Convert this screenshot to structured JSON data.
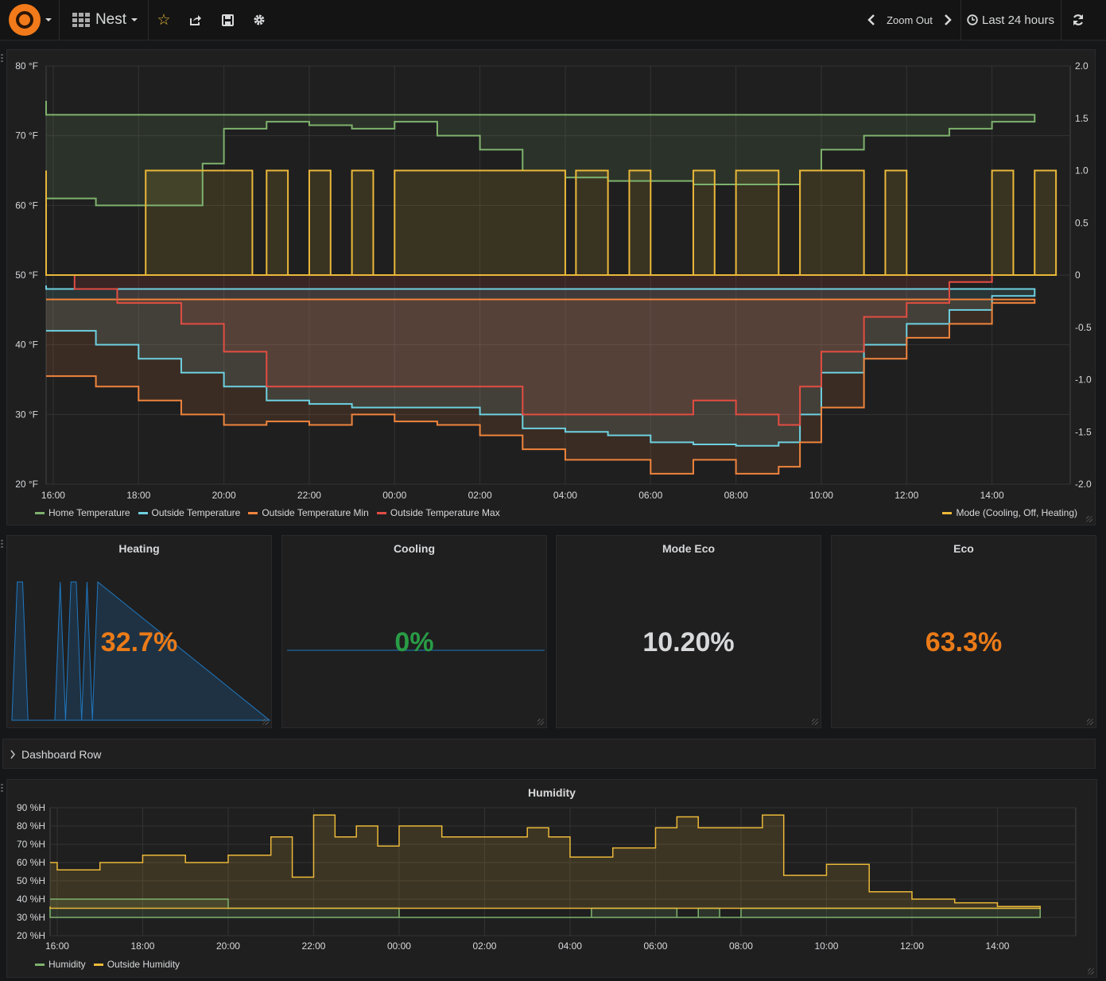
{
  "header": {
    "dashboard_name": "Nest",
    "zoom_out_label": "Zoom Out",
    "time_range": "Last 24 hours"
  },
  "colors": {
    "green": "#7eb26d",
    "blue": "#6ed0e0",
    "orange": "#ef843c",
    "red": "#e24d42",
    "yellow": "#eab839",
    "accent_orange": "#eb7b18",
    "stat_green": "#299c46",
    "spark_blue": "#1f78c1"
  },
  "main_chart": {
    "y_left_ticks": [
      "80 °F",
      "70 °F",
      "60 °F",
      "50 °F",
      "40 °F",
      "30 °F",
      "20 °F"
    ],
    "y_right_ticks": [
      "2.0",
      "1.5",
      "1.0",
      "0.5",
      "0",
      "-0.5",
      "-1.0",
      "-1.5",
      "-2.0"
    ],
    "x_ticks": [
      "16:00",
      "18:00",
      "20:00",
      "22:00",
      "00:00",
      "02:00",
      "04:00",
      "06:00",
      "08:00",
      "10:00",
      "12:00",
      "14:00"
    ],
    "legend_left": [
      {
        "name": "Home Temperature",
        "color": "#7eb26d"
      },
      {
        "name": "Outside Temperature",
        "color": "#6ed0e0"
      },
      {
        "name": "Outside Temperature Min",
        "color": "#ef843c"
      },
      {
        "name": "Outside Temperature Max",
        "color": "#e24d42"
      }
    ],
    "legend_right": {
      "name": "Mode (Cooling, Off, Heating)",
      "color": "#eab839"
    }
  },
  "chart_data": [
    {
      "type": "line",
      "x_axis": "time",
      "x_range": [
        "15:50",
        "15:50 (+24h)"
      ],
      "ylim_left": [
        20,
        80
      ],
      "ylim_right": [
        -2.0,
        2.0
      ],
      "grid": true,
      "legend_placement": "bottom",
      "series": [
        {
          "name": "Home Temperature",
          "axis": "left",
          "color": "#7eb26d",
          "x": [
            "15:50",
            "17:00",
            "18:00",
            "19:30",
            "20:00",
            "21:00",
            "22:00",
            "23:00",
            "00:00",
            "01:00",
            "02:00",
            "03:00",
            "04:00",
            "05:00",
            "06:00",
            "07:00",
            "08:00",
            "09:00",
            "09:30",
            "10:00",
            "11:00",
            "12:00",
            "13:00",
            "14:00",
            "15:00",
            "15:50"
          ],
          "values": [
            61,
            60,
            60,
            66,
            71,
            72,
            71.5,
            71,
            72,
            70,
            68,
            65,
            64,
            63.5,
            63.5,
            63,
            63,
            63,
            65,
            68,
            70,
            70,
            71,
            72,
            73,
            75
          ]
        },
        {
          "name": "Outside Temperature",
          "axis": "left",
          "color": "#6ed0e0",
          "x": [
            "15:50",
            "17:00",
            "18:00",
            "19:00",
            "20:00",
            "21:00",
            "22:00",
            "23:00",
            "00:00",
            "01:00",
            "02:00",
            "03:00",
            "04:00",
            "05:00",
            "06:00",
            "07:00",
            "08:00",
            "09:00",
            "09:30",
            "10:00",
            "11:00",
            "12:00",
            "13:00",
            "14:00",
            "15:00",
            "15:50"
          ],
          "values": [
            42,
            40,
            38,
            36,
            34,
            32,
            31.5,
            31,
            31,
            31,
            30,
            28,
            27.5,
            27,
            26,
            25.7,
            25.5,
            26,
            30,
            36,
            40,
            43,
            45,
            47,
            48,
            48.5
          ]
        },
        {
          "name": "Outside Temperature Min",
          "axis": "left",
          "color": "#ef843c",
          "x": [
            "15:50",
            "17:00",
            "18:00",
            "19:00",
            "20:00",
            "21:00",
            "22:00",
            "23:00",
            "00:00",
            "01:00",
            "02:00",
            "03:00",
            "04:00",
            "05:00",
            "06:00",
            "07:00",
            "08:00",
            "09:00",
            "09:30",
            "10:00",
            "11:00",
            "12:00",
            "13:00",
            "14:00",
            "15:00",
            "15:50"
          ],
          "values": [
            35.5,
            34,
            32,
            30,
            28.5,
            29,
            28.5,
            30,
            29,
            28.5,
            27,
            25,
            23.5,
            23.5,
            21.5,
            23.5,
            21.5,
            22.5,
            26,
            31,
            38,
            41,
            43,
            46,
            46.5,
            46.5
          ]
        },
        {
          "name": "Outside Temperature Max",
          "axis": "left",
          "color": "#e24d42",
          "x": [
            "15:50",
            "16:30",
            "17:30",
            "19:00",
            "20:00",
            "21:00",
            "22:00",
            "23:00",
            "00:00",
            "01:00",
            "02:00",
            "03:00",
            "04:00",
            "05:00",
            "06:00",
            "07:00",
            "08:00",
            "09:00",
            "09:30",
            "10:00",
            "11:00",
            "12:00",
            "13:00",
            "14:00",
            "15:00",
            "15:50"
          ],
          "values": [
            50,
            48,
            46,
            43,
            39,
            34,
            34,
            34,
            34,
            34,
            34,
            30,
            30,
            30,
            30,
            32,
            30,
            28.5,
            34,
            39,
            44,
            46,
            49,
            50,
            50,
            50
          ]
        },
        {
          "name": "Mode (Cooling, Off, Heating)",
          "axis": "right",
          "color": "#eab839",
          "x": [
            "15:50",
            "18:10",
            "20:40",
            "21:00",
            "21:30",
            "22:00",
            "22:30",
            "23:00",
            "23:30",
            "00:00",
            "04:00",
            "04:15",
            "05:00",
            "05:30",
            "06:00",
            "07:00",
            "07:30",
            "08:00",
            "09:00",
            "09:30",
            "11:00",
            "11:30",
            "12:00",
            "14:00",
            "14:30",
            "15:00",
            "15:30",
            "15:50"
          ],
          "values": [
            0,
            1,
            0,
            1,
            0,
            1,
            0,
            1,
            0,
            1,
            0,
            1,
            0,
            1,
            0,
            1,
            0,
            1,
            0,
            1,
            0,
            1,
            0,
            1,
            0,
            1,
            0,
            1
          ]
        }
      ]
    },
    {
      "type": "stat",
      "title": "Heating",
      "value": "32.7%",
      "spark": {
        "x": [
          "16:00",
          "16:30",
          "17:00",
          "17:30",
          "18:00",
          "19:00",
          "20:00",
          "20:30",
          "21:00",
          "21:30",
          "22:00",
          "22:30",
          "23:00",
          "23:30",
          "00:00"
        ],
        "values": [
          0,
          1,
          1,
          0,
          0,
          0,
          0,
          1,
          0,
          1,
          1,
          0,
          1,
          0,
          1
        ]
      }
    },
    {
      "type": "stat",
      "title": "Cooling",
      "value": "0%",
      "spark": {
        "x": [
          "16:00",
          "15:50 (+24h)"
        ],
        "values": [
          0,
          0
        ]
      }
    },
    {
      "type": "stat",
      "title": "Mode Eco",
      "value": "10.20%"
    },
    {
      "type": "stat",
      "title": "Eco",
      "value": "63.3%"
    },
    {
      "type": "line",
      "title": "Humidity",
      "ylim": [
        20,
        90
      ],
      "y_ticks": [
        "90 %H",
        "80 %H",
        "70 %H",
        "60 %H",
        "50 %H",
        "40 %H",
        "30 %H",
        "20 %H"
      ],
      "x_ticks": [
        "16:00",
        "18:00",
        "20:00",
        "22:00",
        "00:00",
        "02:00",
        "04:00",
        "06:00",
        "08:00",
        "10:00",
        "12:00",
        "14:00"
      ],
      "legend_placement": "bottom",
      "series": [
        {
          "name": "Humidity",
          "color": "#7eb26d",
          "x": [
            "15:50",
            "16:00",
            "17:00",
            "18:00",
            "19:00",
            "20:00",
            "21:00",
            "22:00",
            "23:00",
            "00:00",
            "01:00",
            "02:00",
            "03:00",
            "04:00",
            "04:30",
            "05:00",
            "06:00",
            "06:30",
            "07:00",
            "07:30",
            "08:00",
            "09:00",
            "10:00",
            "11:00",
            "12:00",
            "13:00",
            "14:00",
            "15:00",
            "15:50"
          ],
          "values": [
            40,
            40,
            40,
            40,
            40,
            35,
            35,
            35,
            35,
            30,
            30,
            30,
            30,
            30,
            35,
            35,
            35,
            30,
            35,
            30,
            35,
            35,
            35,
            35,
            35,
            35,
            35,
            30,
            35
          ]
        },
        {
          "name": "Outside Humidity",
          "color": "#eab839",
          "x": [
            "15:50",
            "16:00",
            "17:00",
            "18:00",
            "19:00",
            "20:00",
            "21:00",
            "21:30",
            "22:00",
            "22:30",
            "23:00",
            "23:30",
            "00:00",
            "01:00",
            "02:00",
            "03:00",
            "03:30",
            "04:00",
            "05:00",
            "06:00",
            "06:30",
            "07:00",
            "08:00",
            "08:30",
            "09:00",
            "10:00",
            "11:00",
            "12:00",
            "13:00",
            "14:00",
            "15:00",
            "15:50"
          ],
          "values": [
            60,
            56,
            60,
            64,
            60,
            64,
            74,
            52,
            86,
            74,
            80,
            69,
            80,
            74,
            74,
            79,
            74,
            63,
            68,
            79,
            85,
            79,
            79,
            86,
            53,
            59,
            44,
            40,
            38,
            36,
            35,
            36
          ]
        }
      ]
    }
  ],
  "stats": [
    {
      "title": "Heating",
      "value": "32.7%",
      "color": "#eb7b18"
    },
    {
      "title": "Cooling",
      "value": "0%",
      "color": "#299c46"
    },
    {
      "title": "Mode Eco",
      "value": "10.20%",
      "color": "#d8d9da"
    },
    {
      "title": "Eco",
      "value": "63.3%",
      "color": "#eb7b18"
    }
  ],
  "row": {
    "label": "Dashboard Row"
  },
  "humidity": {
    "title": "Humidity",
    "legend": [
      {
        "name": "Humidity",
        "color": "#7eb26d"
      },
      {
        "name": "Outside Humidity",
        "color": "#eab839"
      }
    ]
  }
}
